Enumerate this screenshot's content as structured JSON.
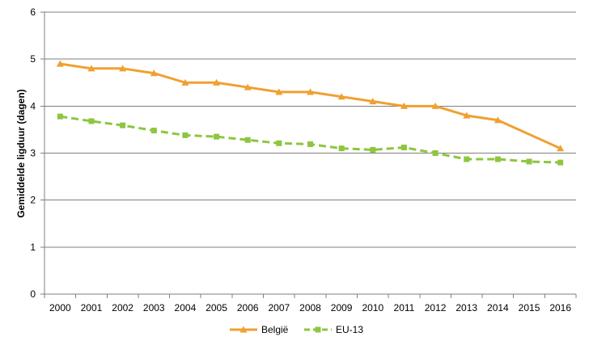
{
  "chart_data": {
    "type": "line",
    "title": "",
    "xlabel": "",
    "ylabel": "Gemiddelde ligduur (dagen)",
    "ylim": [
      0,
      6
    ],
    "yticks": [
      0,
      1,
      2,
      3,
      4,
      5,
      6
    ],
    "grid": true,
    "legend_position": "bottom",
    "categories": [
      "2000",
      "2001",
      "2002",
      "2003",
      "2004",
      "2005",
      "2006",
      "2007",
      "2008",
      "2009",
      "2010",
      "2011",
      "2012",
      "2013",
      "2014",
      "2015",
      "2016"
    ],
    "series": [
      {
        "name": "België",
        "color": "#F0A030",
        "marker": "triangle",
        "line_style": "solid",
        "values": [
          4.9,
          4.8,
          4.8,
          4.7,
          4.5,
          4.5,
          4.4,
          4.3,
          4.3,
          4.2,
          4.1,
          4.0,
          4.0,
          3.8,
          3.7,
          null,
          3.1
        ]
      },
      {
        "name": "EU-13",
        "color": "#8DC63F",
        "marker": "square",
        "line_style": "dashed",
        "values": [
          3.78,
          3.68,
          3.59,
          3.48,
          3.38,
          3.35,
          3.28,
          3.21,
          3.19,
          3.1,
          3.07,
          3.12,
          3.0,
          2.87,
          2.87,
          2.82,
          2.8
        ]
      }
    ]
  }
}
